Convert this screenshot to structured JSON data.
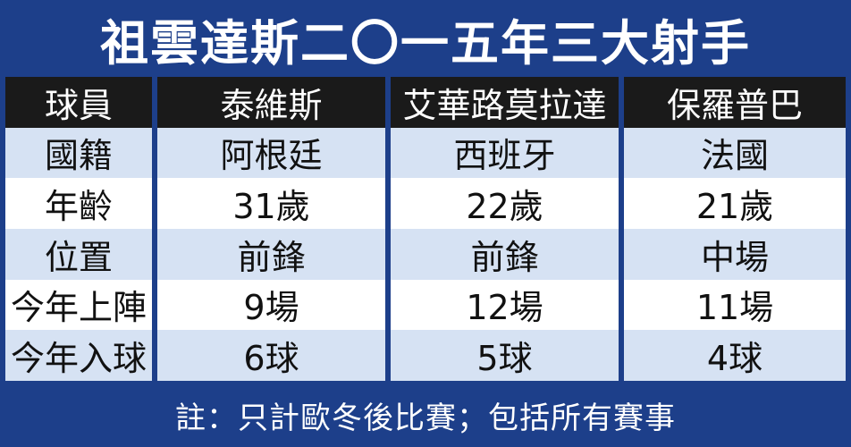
{
  "title": "祖雲達斯二〇一五年三大射手",
  "table": {
    "headers": [
      "球員",
      "泰維斯",
      "艾華路莫拉達",
      "保羅普巴"
    ],
    "rows": [
      [
        "國籍",
        "阿根廷",
        "西班牙",
        "法國"
      ],
      [
        "年齡",
        "31歲",
        "22歲",
        "21歲"
      ],
      [
        "位置",
        "前鋒",
        "前鋒",
        "中場"
      ],
      [
        "今年上陣",
        "9場",
        "12場",
        "11場"
      ],
      [
        "今年入球",
        "6球",
        "5球",
        "4球"
      ]
    ]
  },
  "footer": "註：只計歐冬後比賽；包括所有賽事",
  "colors": {
    "frame": "#1d3f8a",
    "header_bg": "#1a1a1a",
    "stripe": "#d6e2f3",
    "row_bg": "#ffffff"
  }
}
